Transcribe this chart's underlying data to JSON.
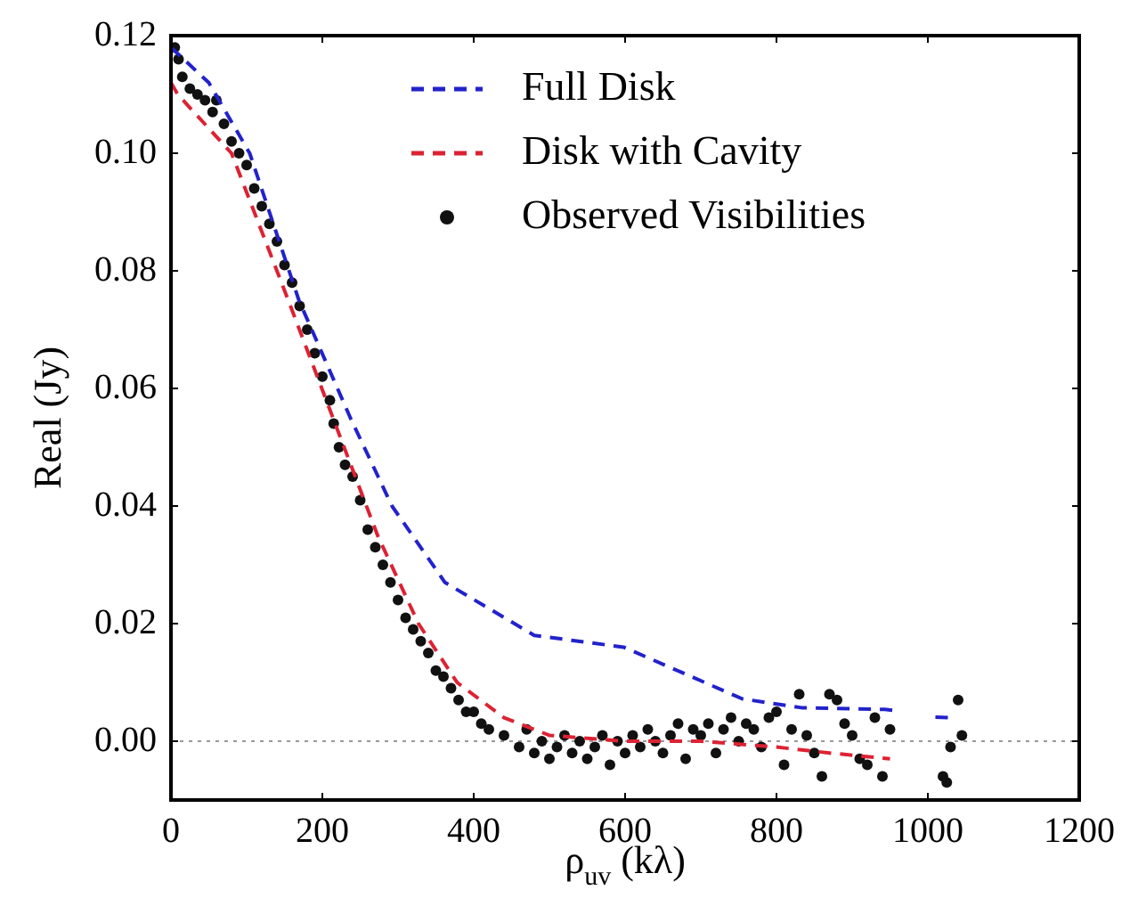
{
  "chart_data": {
    "type": "scatter",
    "xlabel": "ρ$_{uv}$ (kλ)",
    "ylabel": "Real (Jy)",
    "xlim": [
      0,
      1200
    ],
    "xticks": [
      0,
      200,
      400,
      600,
      800,
      1000,
      1200
    ],
    "ylim": [
      -0.01,
      0.12
    ],
    "yticks": [
      {
        "value": 0,
        "label": "0.00"
      },
      {
        "value": 0.02,
        "label": "0.02"
      },
      {
        "value": 0.04,
        "label": "0.04"
      },
      {
        "value": 0.06,
        "label": "0.06"
      },
      {
        "value": 0.08,
        "label": "0.08"
      },
      {
        "value": 0.1,
        "label": "0.10"
      },
      {
        "value": 0.12,
        "label": "0.12"
      }
    ],
    "grid": false,
    "legend": "top right",
    "ref_lines": [
      {
        "axis": "y",
        "value": 0,
        "color": "#999999",
        "line_style": "dotted"
      }
    ],
    "series": [
      {
        "name": "Full Disk",
        "type": "line",
        "line_style": "dashed",
        "marker": "none",
        "color": "#2222cc",
        "x": [
          0,
          50,
          104,
          169,
          237,
          292,
          362,
          480,
          598,
          755,
          833,
          943,
          960,
          985,
          1010,
          1030
        ],
        "values": [
          0.118,
          0.112,
          0.1,
          0.075,
          0.055,
          0.04,
          0.027,
          0.018,
          0.016,
          0.0072,
          0.0057,
          0.0054,
          0.0052,
          null,
          0.0041,
          0.004
        ]
      },
      {
        "name": "Disk with Cavity",
        "type": "line",
        "line_style": "dashed",
        "marker": "none",
        "color": "#dd2233",
        "x": [
          0,
          9,
          80,
          155,
          214,
          273,
          327,
          378,
          440,
          500,
          600,
          700,
          800,
          870,
          950
        ],
        "values": [
          0.112,
          0.11,
          0.1,
          0.075,
          0.055,
          0.035,
          0.02,
          0.01,
          0.004,
          0.001,
          0.0,
          0.0,
          -0.001,
          -0.002,
          -0.003
        ]
      },
      {
        "name": "Observed Visibilities",
        "marker": "circle",
        "color": "#111111",
        "x": [
          5,
          10,
          15,
          25,
          35,
          45,
          55,
          60,
          70,
          80,
          90,
          100,
          110,
          120,
          130,
          140,
          150,
          160,
          170,
          180,
          190,
          200,
          210,
          215,
          222,
          230,
          240,
          250,
          260,
          270,
          280,
          290,
          300,
          310,
          320,
          330,
          340,
          350,
          360,
          370,
          380,
          390,
          400,
          410,
          420,
          440,
          460,
          470,
          480,
          490,
          500,
          510,
          520,
          530,
          540,
          550,
          560,
          570,
          580,
          590,
          600,
          610,
          620,
          630,
          640,
          650,
          660,
          670,
          680,
          690,
          700,
          710,
          720,
          730,
          740,
          750,
          760,
          770,
          780,
          790,
          800,
          810,
          820,
          830,
          840,
          850,
          860,
          870,
          880,
          890,
          900,
          910,
          920,
          930,
          940,
          950,
          1020,
          1025,
          1030,
          1040,
          1045
        ],
        "values": [
          0.118,
          0.116,
          0.113,
          0.111,
          0.11,
          0.109,
          0.107,
          0.109,
          0.105,
          0.102,
          0.1,
          0.098,
          0.094,
          0.091,
          0.088,
          0.085,
          0.081,
          0.078,
          0.074,
          0.07,
          0.066,
          0.062,
          0.058,
          0.054,
          0.05,
          0.047,
          0.045,
          0.041,
          0.036,
          0.033,
          0.03,
          0.027,
          0.024,
          0.021,
          0.019,
          0.017,
          0.015,
          0.012,
          0.011,
          0.009,
          0.007,
          0.005,
          0.005,
          0.003,
          0.002,
          0.001,
          -0.001,
          0.002,
          -0.002,
          0.0,
          -0.003,
          -0.001,
          0.001,
          -0.002,
          0.0,
          -0.003,
          -0.001,
          0.001,
          -0.004,
          0.0,
          -0.002,
          0.001,
          -0.001,
          0.002,
          0.0,
          -0.002,
          0.001,
          0.003,
          -0.003,
          0.002,
          0.001,
          0.003,
          -0.002,
          0.002,
          0.004,
          0.0,
          0.003,
          0.002,
          -0.001,
          0.004,
          0.005,
          -0.004,
          0.002,
          0.008,
          0.001,
          -0.002,
          -0.006,
          0.008,
          0.007,
          0.003,
          0.001,
          -0.003,
          -0.004,
          0.004,
          -0.006,
          0.002,
          -0.006,
          -0.007,
          -0.001,
          0.007,
          0.001
        ]
      }
    ]
  }
}
